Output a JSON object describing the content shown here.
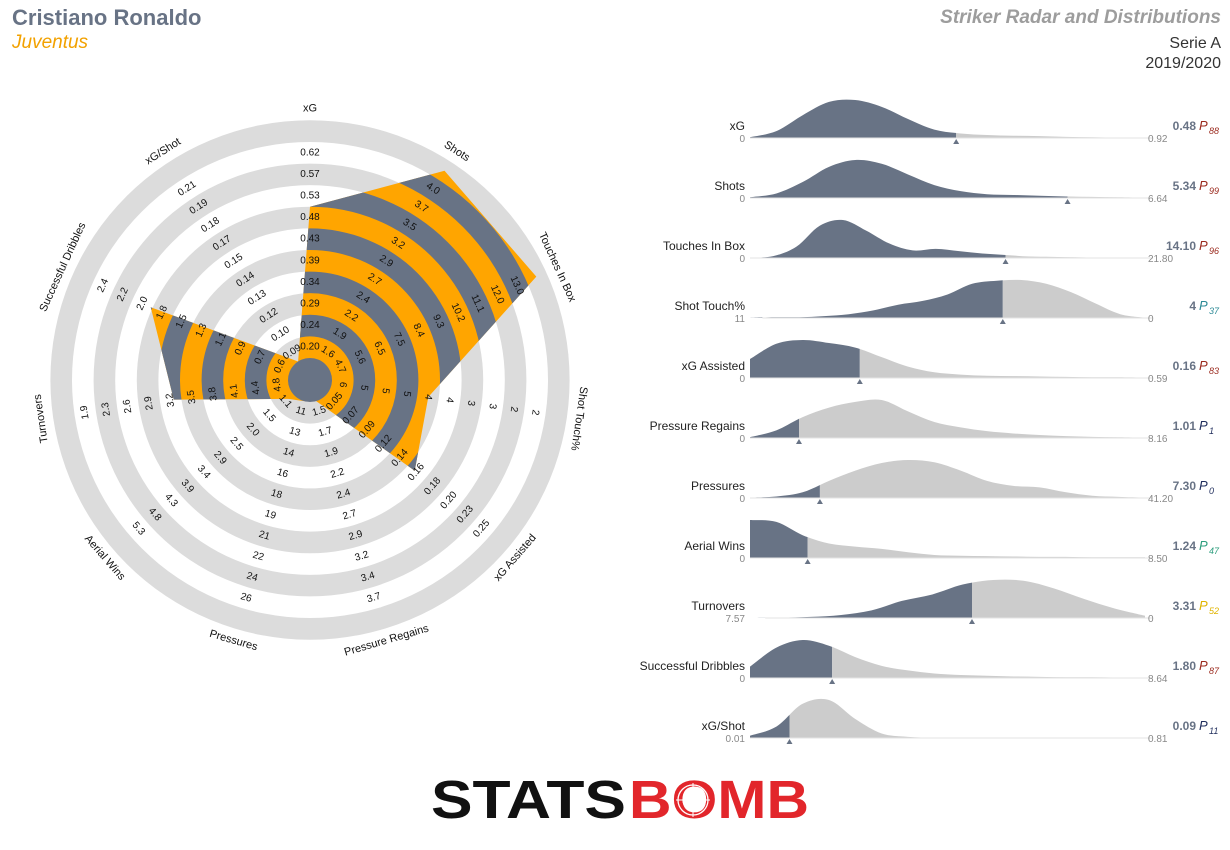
{
  "header": {
    "player": "Cristiano Ronaldo",
    "team": "Juventus",
    "title": "Striker Radar and Distributions",
    "league": "Serie A",
    "season": "2019/2020"
  },
  "colors": {
    "radar_fill": "#ffa500",
    "radar_band": "#687385",
    "ring": "#dcdcdc",
    "dist_below": "#687385",
    "dist_above": "#cccccc"
  },
  "brand": {
    "text_black": "STATS",
    "text_red": "BOMB",
    "red": "#e2262b"
  },
  "chart_data": [
    {
      "type": "radar",
      "metrics": [
        {
          "name": "xG",
          "ticks": [
            "0.20",
            "0.24",
            "0.29",
            "0.34",
            "0.39",
            "0.43",
            "0.48",
            "0.53",
            "0.57",
            "0.62"
          ],
          "value": 0.48,
          "level": 0.667
        },
        {
          "name": "Shots",
          "ticks": [
            "1.6",
            "1.9",
            "2.2",
            "2.4",
            "2.7",
            "2.9",
            "3.2",
            "3.5",
            "3.7",
            "4.0"
          ],
          "value": 5.34,
          "level": 1.0
        },
        {
          "name": "Touches In Box",
          "ticks": [
            "4.7",
            "5.6",
            "6.5",
            "7.5",
            "8.4",
            "9.3",
            "10.2",
            "11.1",
            "12.0",
            "13.0"
          ],
          "value": 14.1,
          "level": 1.0
        },
        {
          "name": "Shot Touch%",
          "ticks": [
            "6",
            "5",
            "5",
            "5",
            "4",
            "4",
            "3",
            "3",
            "2",
            "2"
          ],
          "value": 4,
          "level": 0.43
        },
        {
          "name": "xG Assisted",
          "ticks": [
            "0.05",
            "0.07",
            "0.09",
            "0.12",
            "0.14",
            "0.16",
            "0.18",
            "0.20",
            "0.23",
            "0.25"
          ],
          "value": 0.16,
          "level": 0.514
        },
        {
          "name": "Pressure Regains",
          "ticks": [
            "1.5",
            "1.7",
            "1.9",
            "2.2",
            "2.4",
            "2.7",
            "2.9",
            "3.2",
            "3.4",
            "3.7"
          ],
          "value": 1.01,
          "level": 0.0
        },
        {
          "name": "Pressures",
          "ticks": [
            "11",
            "13",
            "14",
            "16",
            "18",
            "19",
            "21",
            "22",
            "24",
            "26"
          ],
          "value": 7.3,
          "level": 0.0
        },
        {
          "name": "Aerial Wins",
          "ticks": [
            "1.1",
            "1.5",
            "2.0",
            "2.5",
            "2.9",
            "3.4",
            "3.9",
            "4.3",
            "4.8",
            "5.3"
          ],
          "value": 1.24,
          "level": 0.03
        },
        {
          "name": "Turnovers",
          "ticks": [
            "4.8",
            "4.4",
            "4.1",
            "3.8",
            "3.5",
            "3.2",
            "2.9",
            "2.6",
            "2.3",
            "1.9"
          ],
          "value": 3.31,
          "level": 0.51
        },
        {
          "name": "Successful Dribbles",
          "ticks": [
            "0.6",
            "0.7",
            "0.9",
            "1.1",
            "1.3",
            "1.5",
            "1.8",
            "2.0",
            "2.2",
            "2.4"
          ],
          "value": 1.8,
          "level": 0.675
        },
        {
          "name": "xG/Shot",
          "ticks": [
            "0.09",
            "0.10",
            "0.12",
            "0.13",
            "0.14",
            "0.15",
            "0.17",
            "0.18",
            "0.19",
            "0.21"
          ],
          "value": 0.09,
          "level": 0.0
        }
      ]
    },
    {
      "type": "area",
      "series": [
        {
          "name": "xG",
          "min": "0",
          "max": "0.92",
          "value": "0.48",
          "pct": "88",
          "pct_color": "#9b2a1e",
          "mark": 0.522,
          "density": [
            0.02,
            0.18,
            0.6,
            0.95,
            1,
            0.82,
            0.5,
            0.22,
            0.12,
            0.08,
            0.06,
            0.05,
            0.03,
            0.02,
            0.01,
            0.005
          ]
        },
        {
          "name": "Shots",
          "min": "0",
          "max": "6.64",
          "value": "5.34",
          "pct": "99",
          "pct_color": "#9b2a1e",
          "mark": 0.804,
          "density": [
            0.02,
            0.12,
            0.42,
            0.82,
            1,
            0.9,
            0.62,
            0.34,
            0.18,
            0.1,
            0.08,
            0.06,
            0.04,
            0.03,
            0.02,
            0.01
          ]
        },
        {
          "name": "Touches In Box",
          "min": "0",
          "max": "21.80",
          "value": "14.10",
          "pct": "96",
          "pct_color": "#9b2a1e",
          "mark": 0.647,
          "density": [
            0.01,
            0.05,
            0.3,
            0.85,
            1,
            0.72,
            0.38,
            0.2,
            0.24,
            0.18,
            0.12,
            0.08,
            0.04,
            0.03,
            0.02,
            0.01,
            0.01,
            0.005
          ]
        },
        {
          "name": "Shot Touch%",
          "min": "11",
          "max": "0",
          "value": "4",
          "pct": "37",
          "pct_color": "#2d8a96",
          "mark": 0.64,
          "density": [
            0.0,
            0.02,
            0.02,
            0.05,
            0.1,
            0.2,
            0.35,
            0.45,
            0.62,
            0.9,
            0.98,
            1,
            0.9,
            0.68,
            0.38,
            0.1,
            0.01
          ]
        },
        {
          "name": "xG Assisted",
          "min": "0",
          "max": "0.59",
          "value": "0.16",
          "pct": "83",
          "pct_color": "#9b2a1e",
          "mark": 0.278,
          "density": [
            0.5,
            0.9,
            1,
            0.92,
            0.8,
            0.55,
            0.3,
            0.15,
            0.09,
            0.06,
            0.05,
            0.04,
            0.03,
            0.02,
            0.02,
            0.01
          ]
        },
        {
          "name": "Pressure Regains",
          "min": "0",
          "max": "8.16",
          "value": "1.01",
          "pct": "1",
          "pct_color": "#1f2d5c",
          "mark": 0.124,
          "density": [
            0.02,
            0.2,
            0.55,
            0.8,
            0.95,
            1,
            0.7,
            0.42,
            0.28,
            0.18,
            0.12,
            0.08,
            0.05,
            0.03,
            0.02,
            0.01
          ]
        },
        {
          "name": "Pressures",
          "min": "0",
          "max": "41.20",
          "value": "7.30",
          "pct": "0",
          "pct_color": "#1f2d5c",
          "mark": 0.177,
          "density": [
            0.01,
            0.04,
            0.15,
            0.45,
            0.72,
            0.92,
            1,
            0.94,
            0.72,
            0.45,
            0.32,
            0.28,
            0.15,
            0.06,
            0.03,
            0.01
          ]
        },
        {
          "name": "Aerial Wins",
          "min": "0",
          "max": "8.50",
          "value": "1.24",
          "pct": "47",
          "pct_color": "#2e9e7e",
          "mark": 0.146,
          "density": [
            1,
            0.95,
            0.6,
            0.38,
            0.3,
            0.24,
            0.15,
            0.08,
            0.06,
            0.05,
            0.04,
            0.03,
            0.03,
            0.02,
            0.02,
            0.02
          ]
        },
        {
          "name": "Turnovers",
          "min": "7.57",
          "max": "0",
          "value": "3.31",
          "pct": "52",
          "pct_color": "#e0b400",
          "mark": 0.562,
          "density": [
            0.0,
            0.01,
            0.03,
            0.08,
            0.2,
            0.45,
            0.62,
            0.88,
            1,
            0.98,
            0.78,
            0.5,
            0.25,
            0.06
          ]
        },
        {
          "name": "Successful Dribbles",
          "min": "0",
          "max": "8.64",
          "value": "1.80",
          "pct": "87",
          "pct_color": "#9b2a1e",
          "mark": 0.208,
          "density": [
            0.3,
            0.8,
            1,
            0.85,
            0.55,
            0.32,
            0.2,
            0.12,
            0.08,
            0.06,
            0.04,
            0.03,
            0.02,
            0.02,
            0.01,
            0.005
          ]
        },
        {
          "name": "xG/Shot",
          "min": "0.01",
          "max": "0.81",
          "value": "0.09",
          "pct": "11",
          "pct_color": "#1f2d5c",
          "mark": 0.1,
          "density": [
            0.06,
            0.3,
            0.9,
            1,
            0.5,
            0.12,
            0.03,
            0.01,
            0.0,
            0.0,
            0.0,
            0.0,
            0.0,
            0.0,
            0.0,
            0.0
          ]
        }
      ]
    }
  ]
}
